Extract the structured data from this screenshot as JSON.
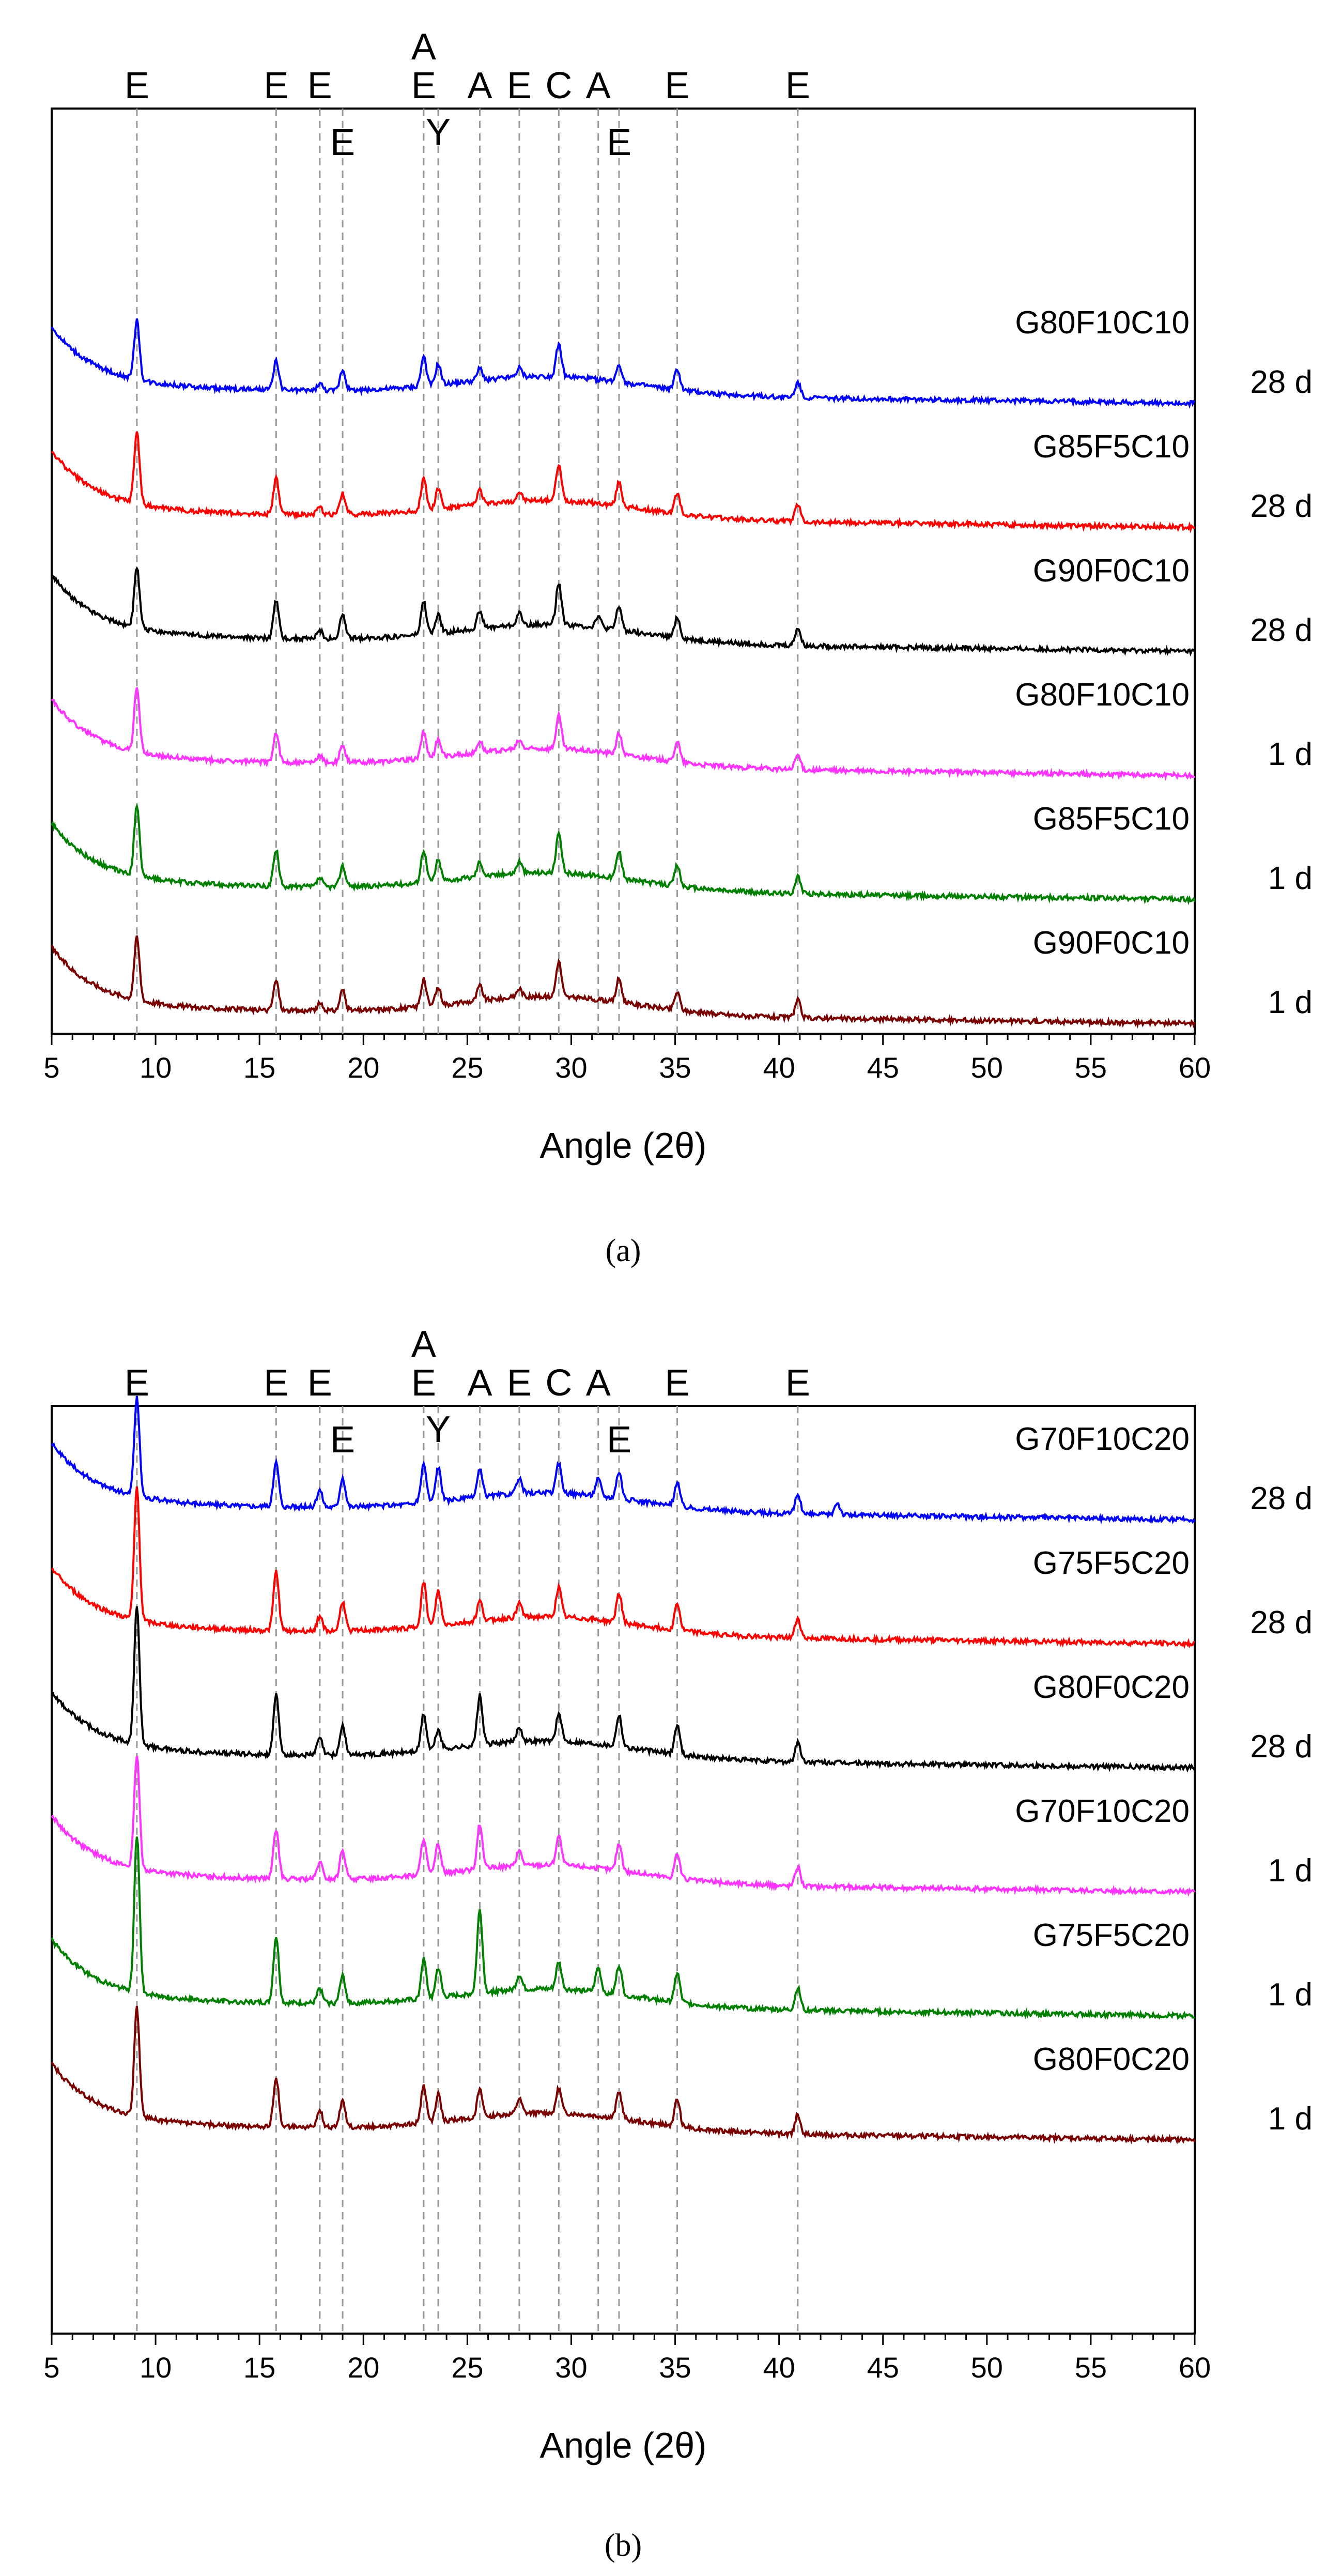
{
  "chart_data": [
    {
      "type": "line",
      "panel_label": "(a)",
      "xlabel": "Angle (2θ)",
      "ylabel": "",
      "xlim": [
        5,
        60
      ],
      "x_ticks": [
        5,
        10,
        15,
        20,
        25,
        30,
        35,
        40,
        45,
        50,
        55,
        60
      ],
      "phase_markers": [
        {
          "x": 9.1,
          "labels": [
            "E"
          ]
        },
        {
          "x": 15.8,
          "labels": [
            "E"
          ]
        },
        {
          "x": 17.9,
          "labels": [
            "E"
          ]
        },
        {
          "x": 19.0,
          "labels": [
            "E"
          ]
        },
        {
          "x": 22.9,
          "labels": [
            "A",
            "E"
          ]
        },
        {
          "x": 23.6,
          "labels": [
            "Y"
          ]
        },
        {
          "x": 25.6,
          "labels": [
            "A"
          ]
        },
        {
          "x": 27.5,
          "labels": [
            "E"
          ]
        },
        {
          "x": 29.4,
          "labels": [
            "C"
          ]
        },
        {
          "x": 31.3,
          "labels": [
            "A"
          ]
        },
        {
          "x": 32.3,
          "labels": [
            "E"
          ]
        },
        {
          "x": 35.1,
          "labels": [
            "E"
          ]
        },
        {
          "x": 40.9,
          "labels": [
            "E"
          ]
        }
      ],
      "series": [
        {
          "name": "G80F10C10",
          "age": "28 d",
          "color": "#0000ff",
          "peaks": [
            [
              9.1,
              1.0
            ],
            [
              15.8,
              0.5
            ],
            [
              17.9,
              0.12
            ],
            [
              19.0,
              0.35
            ],
            [
              22.9,
              0.5
            ],
            [
              23.6,
              0.35
            ],
            [
              25.6,
              0.2
            ],
            [
              27.5,
              0.15
            ],
            [
              29.4,
              0.55
            ],
            [
              32.3,
              0.3
            ],
            [
              35.1,
              0.35
            ],
            [
              40.9,
              0.25
            ]
          ]
        },
        {
          "name": "G85F5C10",
          "age": "28 d",
          "color": "#ff0000",
          "peaks": [
            [
              9.1,
              1.2
            ],
            [
              15.8,
              0.6
            ],
            [
              17.9,
              0.12
            ],
            [
              19.0,
              0.35
            ],
            [
              22.9,
              0.55
            ],
            [
              23.6,
              0.35
            ],
            [
              25.6,
              0.25
            ],
            [
              27.5,
              0.15
            ],
            [
              29.4,
              0.6
            ],
            [
              32.3,
              0.4
            ],
            [
              35.1,
              0.35
            ],
            [
              40.9,
              0.3
            ]
          ]
        },
        {
          "name": "G90F0C10",
          "age": "28 d",
          "color": "#000000",
          "peaks": [
            [
              9.1,
              1.0
            ],
            [
              15.8,
              0.65
            ],
            [
              17.9,
              0.15
            ],
            [
              19.0,
              0.4
            ],
            [
              22.9,
              0.55
            ],
            [
              23.6,
              0.3
            ],
            [
              25.6,
              0.3
            ],
            [
              27.5,
              0.2
            ],
            [
              29.4,
              0.7
            ],
            [
              31.3,
              0.2
            ],
            [
              32.3,
              0.4
            ],
            [
              35.1,
              0.35
            ],
            [
              40.9,
              0.3
            ]
          ]
        },
        {
          "name": "G80F10C10",
          "age": "1 d",
          "color": "#ff33ff",
          "peaks": [
            [
              9.1,
              1.1
            ],
            [
              15.8,
              0.5
            ],
            [
              17.9,
              0.12
            ],
            [
              19.0,
              0.3
            ],
            [
              22.9,
              0.45
            ],
            [
              23.6,
              0.3
            ],
            [
              25.6,
              0.2
            ],
            [
              27.5,
              0.15
            ],
            [
              29.4,
              0.55
            ],
            [
              32.3,
              0.35
            ],
            [
              35.1,
              0.35
            ],
            [
              40.9,
              0.25
            ]
          ]
        },
        {
          "name": "G85F5C10",
          "age": "1 d",
          "color": "#008000",
          "peaks": [
            [
              9.1,
              1.2
            ],
            [
              15.8,
              0.6
            ],
            [
              17.9,
              0.15
            ],
            [
              19.0,
              0.35
            ],
            [
              22.9,
              0.55
            ],
            [
              23.6,
              0.35
            ],
            [
              25.6,
              0.25
            ],
            [
              27.5,
              0.2
            ],
            [
              29.4,
              0.65
            ],
            [
              32.3,
              0.45
            ],
            [
              35.1,
              0.35
            ],
            [
              40.9,
              0.3
            ]
          ]
        },
        {
          "name": "G90F0C10",
          "age": "1 d",
          "color": "#7a0000",
          "peaks": [
            [
              9.1,
              1.05
            ],
            [
              15.8,
              0.5
            ],
            [
              17.9,
              0.12
            ],
            [
              19.0,
              0.35
            ],
            [
              22.9,
              0.45
            ],
            [
              23.6,
              0.3
            ],
            [
              25.6,
              0.25
            ],
            [
              27.5,
              0.15
            ],
            [
              29.4,
              0.6
            ],
            [
              32.3,
              0.4
            ],
            [
              35.1,
              0.3
            ],
            [
              40.9,
              0.3
            ]
          ]
        }
      ]
    },
    {
      "type": "line",
      "panel_label": "(b)",
      "xlabel": "Angle (2θ)",
      "ylabel": "",
      "xlim": [
        5,
        60
      ],
      "x_ticks": [
        5,
        10,
        15,
        20,
        25,
        30,
        35,
        40,
        45,
        50,
        55,
        60
      ],
      "phase_markers": [
        {
          "x": 9.1,
          "labels": [
            "E"
          ]
        },
        {
          "x": 15.8,
          "labels": [
            "E"
          ]
        },
        {
          "x": 17.9,
          "labels": [
            "E"
          ]
        },
        {
          "x": 19.0,
          "labels": [
            "E"
          ]
        },
        {
          "x": 22.9,
          "labels": [
            "A",
            "E"
          ]
        },
        {
          "x": 23.6,
          "labels": [
            "Y"
          ]
        },
        {
          "x": 25.6,
          "labels": [
            "A"
          ]
        },
        {
          "x": 27.5,
          "labels": [
            "E"
          ]
        },
        {
          "x": 29.4,
          "labels": [
            "C"
          ]
        },
        {
          "x": 31.3,
          "labels": [
            "A"
          ]
        },
        {
          "x": 32.3,
          "labels": [
            "E"
          ]
        },
        {
          "x": 35.1,
          "labels": [
            "E"
          ]
        },
        {
          "x": 40.9,
          "labels": [
            "E"
          ]
        }
      ],
      "series": [
        {
          "name": "G70F10C20",
          "age": "28 d",
          "color": "#0000ff",
          "peaks": [
            [
              9.1,
              2.0
            ],
            [
              15.8,
              0.9
            ],
            [
              17.9,
              0.35
            ],
            [
              19.0,
              0.6
            ],
            [
              22.9,
              0.8
            ],
            [
              23.6,
              0.7
            ],
            [
              25.6,
              0.55
            ],
            [
              27.5,
              0.3
            ],
            [
              29.4,
              0.6
            ],
            [
              31.3,
              0.35
            ],
            [
              32.3,
              0.55
            ],
            [
              35.1,
              0.5
            ],
            [
              40.9,
              0.4
            ],
            [
              42.8,
              0.25
            ]
          ]
        },
        {
          "name": "G75F5C20",
          "age": "28 d",
          "color": "#ff0000",
          "peaks": [
            [
              9.1,
              2.7
            ],
            [
              15.8,
              1.2
            ],
            [
              17.9,
              0.3
            ],
            [
              19.0,
              0.6
            ],
            [
              22.9,
              0.9
            ],
            [
              23.6,
              0.7
            ],
            [
              25.6,
              0.4
            ],
            [
              27.5,
              0.3
            ],
            [
              29.4,
              0.6
            ],
            [
              32.3,
              0.6
            ],
            [
              35.1,
              0.55
            ],
            [
              40.9,
              0.4
            ]
          ]
        },
        {
          "name": "G80F0C20",
          "age": "28 d",
          "color": "#000000",
          "peaks": [
            [
              9.1,
              2.8
            ],
            [
              15.8,
              1.2
            ],
            [
              17.9,
              0.35
            ],
            [
              19.0,
              0.6
            ],
            [
              22.9,
              0.75
            ],
            [
              23.6,
              0.4
            ],
            [
              25.6,
              1.0
            ],
            [
              27.5,
              0.3
            ],
            [
              29.4,
              0.55
            ],
            [
              32.3,
              0.65
            ],
            [
              35.1,
              0.6
            ],
            [
              40.9,
              0.4
            ]
          ]
        },
        {
          "name": "G70F10C20",
          "age": "1 d",
          "color": "#ff33ff",
          "peaks": [
            [
              9.1,
              2.3
            ],
            [
              15.8,
              1.0
            ],
            [
              17.9,
              0.35
            ],
            [
              19.0,
              0.6
            ],
            [
              22.9,
              0.75
            ],
            [
              23.6,
              0.6
            ],
            [
              25.6,
              0.9
            ],
            [
              27.5,
              0.3
            ],
            [
              29.4,
              0.6
            ],
            [
              32.3,
              0.55
            ],
            [
              35.1,
              0.5
            ],
            [
              40.9,
              0.4
            ]
          ]
        },
        {
          "name": "G75F5C20",
          "age": "1 d",
          "color": "#008000",
          "peaks": [
            [
              9.1,
              3.2
            ],
            [
              15.8,
              1.35
            ],
            [
              17.9,
              0.3
            ],
            [
              19.0,
              0.55
            ],
            [
              22.9,
              0.8
            ],
            [
              23.6,
              0.6
            ],
            [
              25.6,
              1.7
            ],
            [
              27.5,
              0.3
            ],
            [
              29.4,
              0.55
            ],
            [
              31.3,
              0.5
            ],
            [
              32.3,
              0.6
            ],
            [
              35.1,
              0.6
            ],
            [
              40.9,
              0.45
            ]
          ]
        },
        {
          "name": "G80F0C20",
          "age": "1 d",
          "color": "#7a0000",
          "peaks": [
            [
              9.1,
              2.2
            ],
            [
              15.8,
              1.0
            ],
            [
              17.9,
              0.35
            ],
            [
              19.0,
              0.55
            ],
            [
              22.9,
              0.75
            ],
            [
              23.6,
              0.55
            ],
            [
              25.6,
              0.55
            ],
            [
              27.5,
              0.3
            ],
            [
              29.4,
              0.5
            ],
            [
              32.3,
              0.55
            ],
            [
              35.1,
              0.55
            ],
            [
              40.9,
              0.4
            ]
          ]
        }
      ]
    }
  ]
}
